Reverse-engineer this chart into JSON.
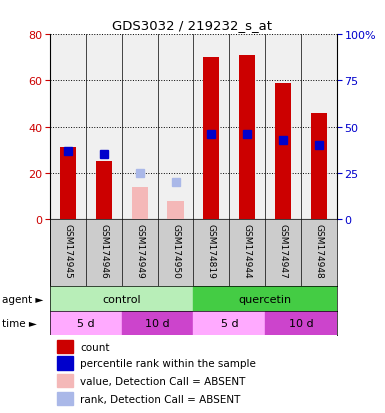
{
  "title": "GDS3032 / 219232_s_at",
  "samples": [
    "GSM174945",
    "GSM174946",
    "GSM174949",
    "GSM174950",
    "GSM174819",
    "GSM174944",
    "GSM174947",
    "GSM174948"
  ],
  "count_present": [
    31,
    25,
    null,
    null,
    70,
    71,
    59,
    46
  ],
  "count_absent": [
    null,
    null,
    14,
    8,
    null,
    null,
    null,
    null
  ],
  "rank_present": [
    37,
    35,
    null,
    null,
    46,
    46,
    43,
    40
  ],
  "rank_absent": [
    null,
    null,
    25,
    20,
    null,
    null,
    null,
    null
  ],
  "left_ylim": [
    0,
    80
  ],
  "right_ylim": [
    0,
    100
  ],
  "left_yticks": [
    0,
    20,
    40,
    60,
    80
  ],
  "right_yticks": [
    0,
    25,
    50,
    75,
    100
  ],
  "right_yticklabels": [
    "0",
    "25",
    "50",
    "75",
    "100%"
  ],
  "bar_color_present": "#cc0000",
  "bar_color_absent": "#f4b8b8",
  "rank_color_present": "#0000cc",
  "rank_color_absent": "#aab8e8",
  "agent_groups": [
    {
      "label": "control",
      "start": 0,
      "end": 4,
      "color": "#b8eeb8"
    },
    {
      "label": "quercetin",
      "start": 4,
      "end": 8,
      "color": "#44cc44"
    }
  ],
  "time_groups": [
    {
      "label": "5 d",
      "start": 0,
      "end": 2,
      "color": "#ffaaff"
    },
    {
      "label": "10 d",
      "start": 2,
      "end": 4,
      "color": "#cc44cc"
    },
    {
      "label": "5 d",
      "start": 4,
      "end": 6,
      "color": "#ffaaff"
    },
    {
      "label": "10 d",
      "start": 6,
      "end": 8,
      "color": "#cc44cc"
    }
  ],
  "legend_items": [
    {
      "label": "count",
      "color": "#cc0000"
    },
    {
      "label": "percentile rank within the sample",
      "color": "#0000cc"
    },
    {
      "label": "value, Detection Call = ABSENT",
      "color": "#f4b8b8"
    },
    {
      "label": "rank, Detection Call = ABSENT",
      "color": "#aab8e8"
    }
  ],
  "left_tick_color": "#cc0000",
  "right_tick_color": "#0000cc",
  "sample_bg_color": "#cccccc",
  "bar_width": 0.45,
  "rank_marker_size": 6,
  "plot_bg_color": "#f0f0f0"
}
